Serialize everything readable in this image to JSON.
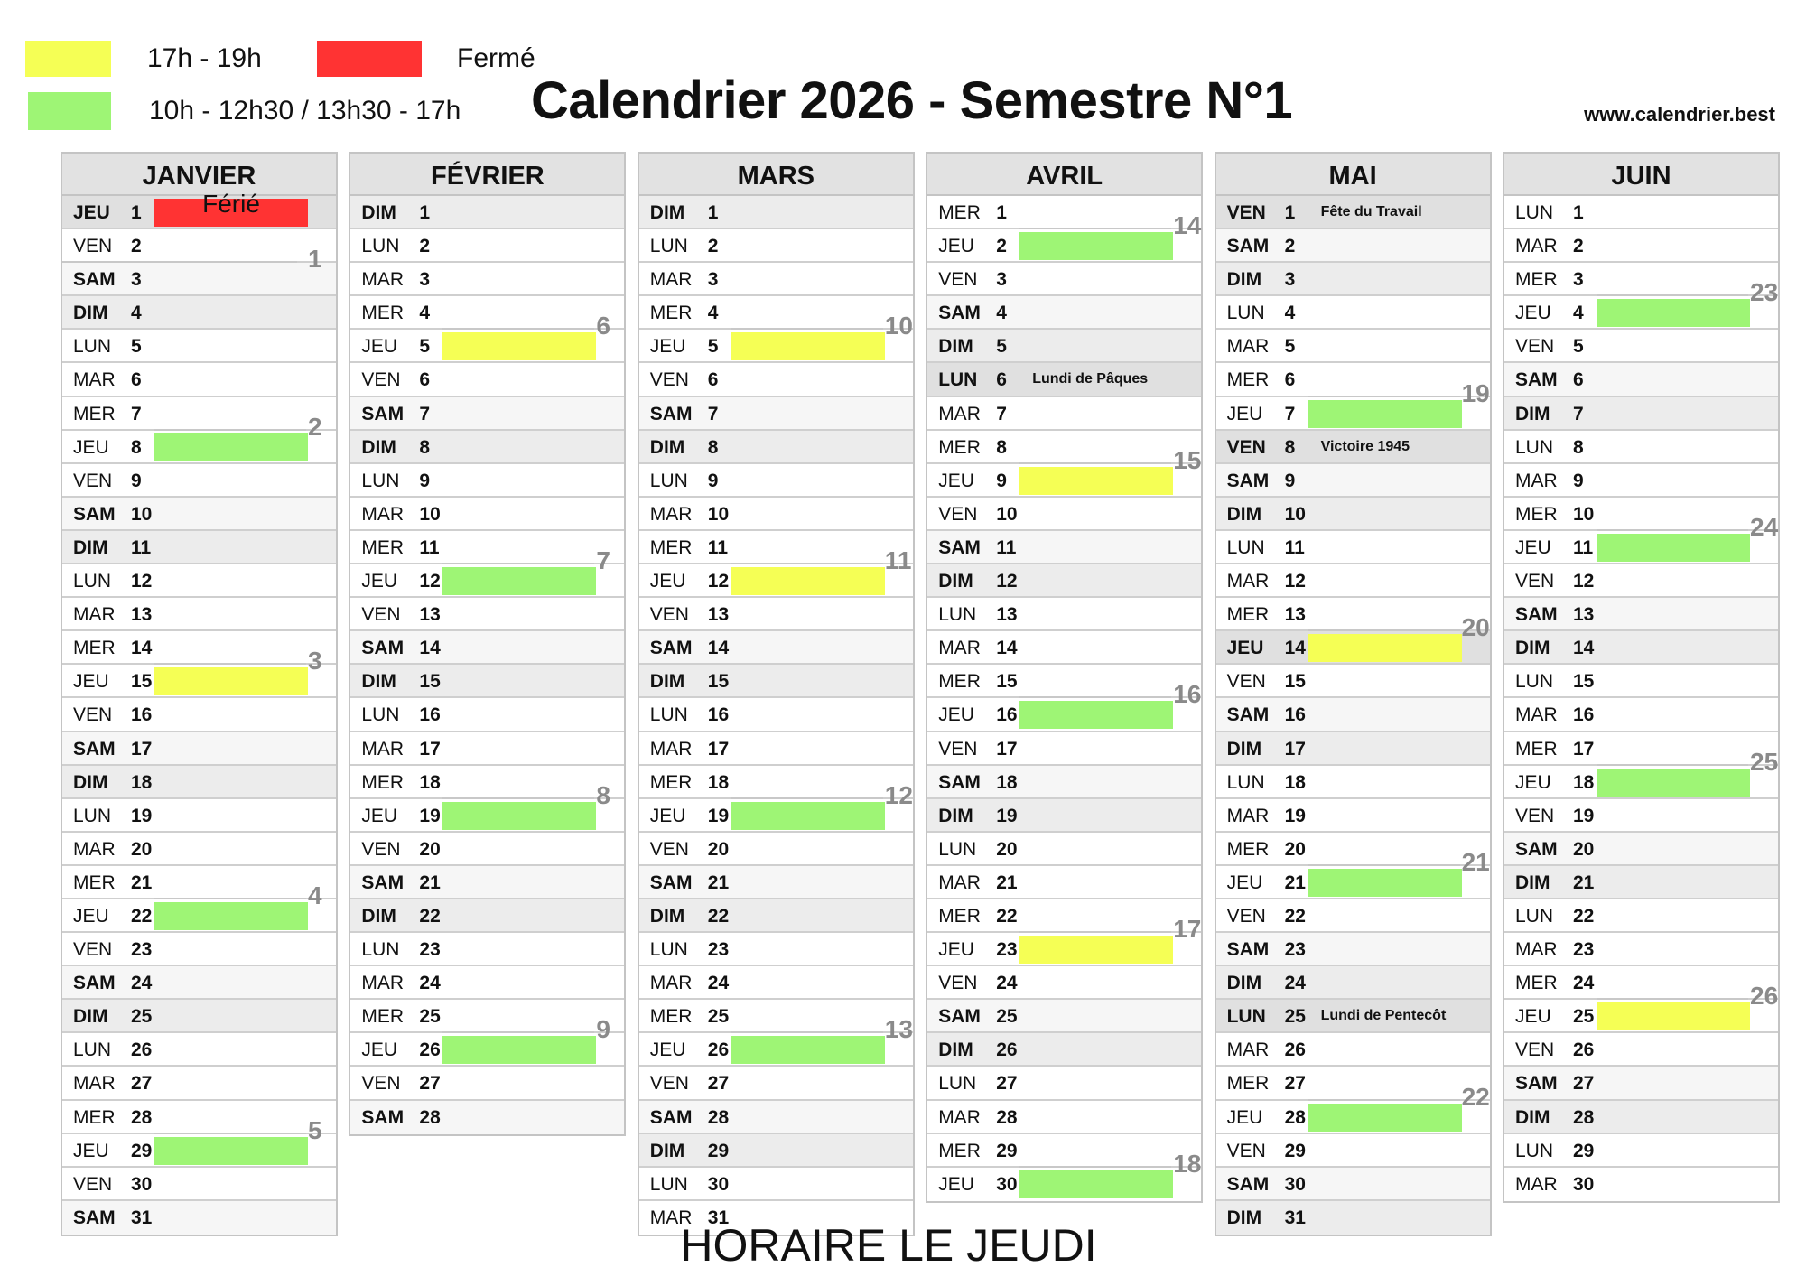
{
  "legend": [
    {
      "label": "17h - 19h",
      "color": "#f5ff55"
    },
    {
      "label": "Fermé",
      "color": "#ff3333"
    },
    {
      "label": "10h - 12h30 / 13h30 - 17h",
      "color": "#9ef575"
    }
  ],
  "title": "Calendrier 2026 - Semestre N°1",
  "website": "www.calendrier.best",
  "footer": "HORAIRE LE JEUDI",
  "colors": {
    "yellow": "#f5ff55",
    "green": "#9ef575",
    "red": "#ff3333"
  },
  "months": [
    {
      "name": "JANVIER",
      "days": [
        [
          "JEU",
          "1"
        ],
        [
          "VEN",
          "2"
        ],
        [
          "SAM",
          "3"
        ],
        [
          "DIM",
          "4"
        ],
        [
          "LUN",
          "5"
        ],
        [
          "MAR",
          "6"
        ],
        [
          "MER",
          "7"
        ],
        [
          "JEU",
          "8"
        ],
        [
          "VEN",
          "9"
        ],
        [
          "SAM",
          "10"
        ],
        [
          "DIM",
          "11"
        ],
        [
          "LUN",
          "12"
        ],
        [
          "MAR",
          "13"
        ],
        [
          "MER",
          "14"
        ],
        [
          "JEU",
          "15"
        ],
        [
          "VEN",
          "16"
        ],
        [
          "SAM",
          "17"
        ],
        [
          "DIM",
          "18"
        ],
        [
          "LUN",
          "19"
        ],
        [
          "MAR",
          "20"
        ],
        [
          "MER",
          "21"
        ],
        [
          "JEU",
          "22"
        ],
        [
          "VEN",
          "23"
        ],
        [
          "SAM",
          "24"
        ],
        [
          "DIM",
          "25"
        ],
        [
          "LUN",
          "26"
        ],
        [
          "MAR",
          "27"
        ],
        [
          "MER",
          "28"
        ],
        [
          "JEU",
          "29"
        ],
        [
          "VEN",
          "30"
        ],
        [
          "SAM",
          "31"
        ]
      ],
      "holidays": {
        "1": ""
      },
      "marks": [
        {
          "day": "1",
          "color": "red",
          "label": "Férié"
        },
        {
          "day": "3",
          "week": "1"
        },
        {
          "day": "8",
          "color": "green",
          "week": "2"
        },
        {
          "day": "15",
          "color": "yellow",
          "week": "3"
        },
        {
          "day": "22",
          "color": "green",
          "week": "4"
        },
        {
          "day": "29",
          "color": "green",
          "week": "5"
        }
      ]
    },
    {
      "name": "FÉVRIER",
      "days": [
        [
          "DIM",
          "1"
        ],
        [
          "LUN",
          "2"
        ],
        [
          "MAR",
          "3"
        ],
        [
          "MER",
          "4"
        ],
        [
          "JEU",
          "5"
        ],
        [
          "VEN",
          "6"
        ],
        [
          "SAM",
          "7"
        ],
        [
          "DIM",
          "8"
        ],
        [
          "LUN",
          "9"
        ],
        [
          "MAR",
          "10"
        ],
        [
          "MER",
          "11"
        ],
        [
          "JEU",
          "12"
        ],
        [
          "VEN",
          "13"
        ],
        [
          "SAM",
          "14"
        ],
        [
          "DIM",
          "15"
        ],
        [
          "LUN",
          "16"
        ],
        [
          "MAR",
          "17"
        ],
        [
          "MER",
          "18"
        ],
        [
          "JEU",
          "19"
        ],
        [
          "VEN",
          "20"
        ],
        [
          "SAM",
          "21"
        ],
        [
          "DIM",
          "22"
        ],
        [
          "LUN",
          "23"
        ],
        [
          "MAR",
          "24"
        ],
        [
          "MER",
          "25"
        ],
        [
          "JEU",
          "26"
        ],
        [
          "VEN",
          "27"
        ],
        [
          "SAM",
          "28"
        ]
      ],
      "holidays": {},
      "marks": [
        {
          "day": "5",
          "color": "yellow",
          "week": "6"
        },
        {
          "day": "12",
          "color": "green",
          "week": "7"
        },
        {
          "day": "19",
          "color": "green",
          "week": "8"
        },
        {
          "day": "26",
          "color": "green",
          "week": "9"
        }
      ]
    },
    {
      "name": "MARS",
      "days": [
        [
          "DIM",
          "1"
        ],
        [
          "LUN",
          "2"
        ],
        [
          "MAR",
          "3"
        ],
        [
          "MER",
          "4"
        ],
        [
          "JEU",
          "5"
        ],
        [
          "VEN",
          "6"
        ],
        [
          "SAM",
          "7"
        ],
        [
          "DIM",
          "8"
        ],
        [
          "LUN",
          "9"
        ],
        [
          "MAR",
          "10"
        ],
        [
          "MER",
          "11"
        ],
        [
          "JEU",
          "12"
        ],
        [
          "VEN",
          "13"
        ],
        [
          "SAM",
          "14"
        ],
        [
          "DIM",
          "15"
        ],
        [
          "LUN",
          "16"
        ],
        [
          "MAR",
          "17"
        ],
        [
          "MER",
          "18"
        ],
        [
          "JEU",
          "19"
        ],
        [
          "VEN",
          "20"
        ],
        [
          "SAM",
          "21"
        ],
        [
          "DIM",
          "22"
        ],
        [
          "LUN",
          "23"
        ],
        [
          "MAR",
          "24"
        ],
        [
          "MER",
          "25"
        ],
        [
          "JEU",
          "26"
        ],
        [
          "VEN",
          "27"
        ],
        [
          "SAM",
          "28"
        ],
        [
          "DIM",
          "29"
        ],
        [
          "LUN",
          "30"
        ],
        [
          "MAR",
          "31"
        ]
      ],
      "holidays": {},
      "marks": [
        {
          "day": "5",
          "color": "yellow",
          "week": "10"
        },
        {
          "day": "12",
          "color": "yellow",
          "week": "11"
        },
        {
          "day": "19",
          "color": "green",
          "week": "12"
        },
        {
          "day": "26",
          "color": "green",
          "week": "13"
        }
      ]
    },
    {
      "name": "AVRIL",
      "days": [
        [
          "MER",
          "1"
        ],
        [
          "JEU",
          "2"
        ],
        [
          "VEN",
          "3"
        ],
        [
          "SAM",
          "4"
        ],
        [
          "DIM",
          "5"
        ],
        [
          "LUN",
          "6"
        ],
        [
          "MAR",
          "7"
        ],
        [
          "MER",
          "8"
        ],
        [
          "JEU",
          "9"
        ],
        [
          "VEN",
          "10"
        ],
        [
          "SAM",
          "11"
        ],
        [
          "DIM",
          "12"
        ],
        [
          "LUN",
          "13"
        ],
        [
          "MAR",
          "14"
        ],
        [
          "MER",
          "15"
        ],
        [
          "JEU",
          "16"
        ],
        [
          "VEN",
          "17"
        ],
        [
          "SAM",
          "18"
        ],
        [
          "DIM",
          "19"
        ],
        [
          "LUN",
          "20"
        ],
        [
          "MAR",
          "21"
        ],
        [
          "MER",
          "22"
        ],
        [
          "JEU",
          "23"
        ],
        [
          "VEN",
          "24"
        ],
        [
          "SAM",
          "25"
        ],
        [
          "DIM",
          "26"
        ],
        [
          "LUN",
          "27"
        ],
        [
          "MAR",
          "28"
        ],
        [
          "MER",
          "29"
        ],
        [
          "JEU",
          "30"
        ]
      ],
      "holidays": {
        "6": "Lundi de Pâques"
      },
      "marks": [
        {
          "day": "2",
          "color": "green",
          "week": "14"
        },
        {
          "day": "9",
          "color": "yellow",
          "week": "15"
        },
        {
          "day": "16",
          "color": "green",
          "week": "16"
        },
        {
          "day": "23",
          "color": "yellow",
          "week": "17"
        },
        {
          "day": "30",
          "color": "green",
          "week": "18"
        }
      ]
    },
    {
      "name": "MAI",
      "days": [
        [
          "VEN",
          "1"
        ],
        [
          "SAM",
          "2"
        ],
        [
          "DIM",
          "3"
        ],
        [
          "LUN",
          "4"
        ],
        [
          "MAR",
          "5"
        ],
        [
          "MER",
          "6"
        ],
        [
          "JEU",
          "7"
        ],
        [
          "VEN",
          "8"
        ],
        [
          "SAM",
          "9"
        ],
        [
          "DIM",
          "10"
        ],
        [
          "LUN",
          "11"
        ],
        [
          "MAR",
          "12"
        ],
        [
          "MER",
          "13"
        ],
        [
          "JEU",
          "14"
        ],
        [
          "VEN",
          "15"
        ],
        [
          "SAM",
          "16"
        ],
        [
          "DIM",
          "17"
        ],
        [
          "LUN",
          "18"
        ],
        [
          "MAR",
          "19"
        ],
        [
          "MER",
          "20"
        ],
        [
          "JEU",
          "21"
        ],
        [
          "VEN",
          "22"
        ],
        [
          "SAM",
          "23"
        ],
        [
          "DIM",
          "24"
        ],
        [
          "LUN",
          "25"
        ],
        [
          "MAR",
          "26"
        ],
        [
          "MER",
          "27"
        ],
        [
          "JEU",
          "28"
        ],
        [
          "VEN",
          "29"
        ],
        [
          "SAM",
          "30"
        ],
        [
          "DIM",
          "31"
        ]
      ],
      "holidays": {
        "1": "Fête du Travail",
        "8": "Victoire 1945",
        "14": "",
        "25": "Lundi de Pentecôt"
      },
      "marks": [
        {
          "day": "7",
          "color": "green",
          "week": "19"
        },
        {
          "day": "14",
          "color": "yellow",
          "week": "20"
        },
        {
          "day": "21",
          "color": "green",
          "week": "21"
        },
        {
          "day": "28",
          "color": "green",
          "week": "22"
        }
      ]
    },
    {
      "name": "JUIN",
      "days": [
        [
          "LUN",
          "1"
        ],
        [
          "MAR",
          "2"
        ],
        [
          "MER",
          "3"
        ],
        [
          "JEU",
          "4"
        ],
        [
          "VEN",
          "5"
        ],
        [
          "SAM",
          "6"
        ],
        [
          "DIM",
          "7"
        ],
        [
          "LUN",
          "8"
        ],
        [
          "MAR",
          "9"
        ],
        [
          "MER",
          "10"
        ],
        [
          "JEU",
          "11"
        ],
        [
          "VEN",
          "12"
        ],
        [
          "SAM",
          "13"
        ],
        [
          "DIM",
          "14"
        ],
        [
          "LUN",
          "15"
        ],
        [
          "MAR",
          "16"
        ],
        [
          "MER",
          "17"
        ],
        [
          "JEU",
          "18"
        ],
        [
          "VEN",
          "19"
        ],
        [
          "SAM",
          "20"
        ],
        [
          "DIM",
          "21"
        ],
        [
          "LUN",
          "22"
        ],
        [
          "MAR",
          "23"
        ],
        [
          "MER",
          "24"
        ],
        [
          "JEU",
          "25"
        ],
        [
          "VEN",
          "26"
        ],
        [
          "SAM",
          "27"
        ],
        [
          "DIM",
          "28"
        ],
        [
          "LUN",
          "29"
        ],
        [
          "MAR",
          "30"
        ]
      ],
      "holidays": {},
      "marks": [
        {
          "day": "4",
          "color": "green",
          "week": "23"
        },
        {
          "day": "11",
          "color": "green",
          "week": "24"
        },
        {
          "day": "18",
          "color": "green",
          "week": "25"
        },
        {
          "day": "25",
          "color": "yellow",
          "week": "26"
        }
      ]
    }
  ]
}
